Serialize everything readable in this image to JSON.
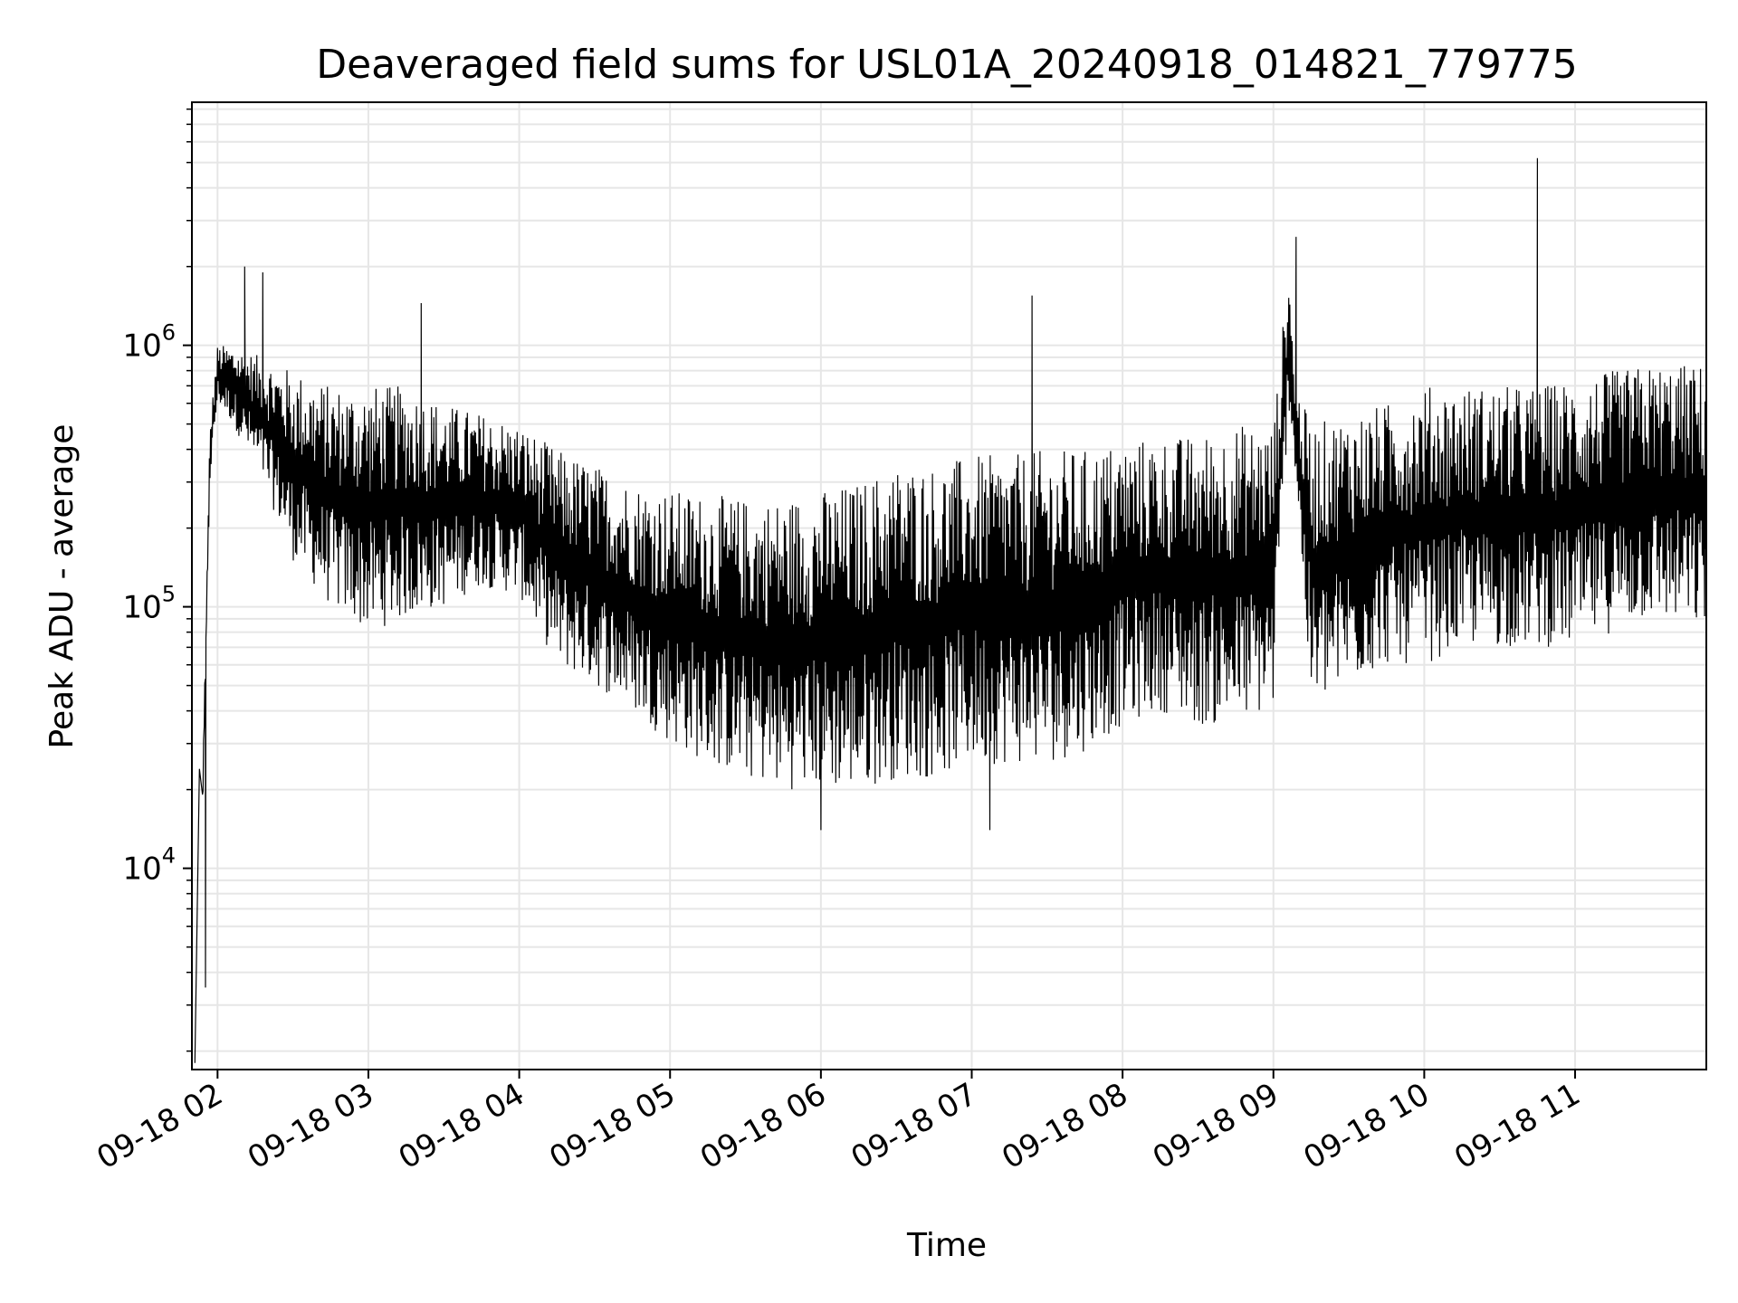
{
  "chart_data": {
    "type": "line",
    "title": "Deaveraged field sums for USL01A_20240918_014821_779775",
    "xlabel": "Time",
    "ylabel": "Peak ADU - average",
    "y_scale": "log",
    "ylim": [
      1700,
      8500000
    ],
    "xlim_hours": [
      1.83,
      11.87
    ],
    "grid": "on",
    "line_color": "#000000",
    "grid_color": "#e6e6e6",
    "x_ticks": [
      {
        "label": "09-18 02",
        "hour": 2
      },
      {
        "label": "09-18 03",
        "hour": 3
      },
      {
        "label": "09-18 04",
        "hour": 4
      },
      {
        "label": "09-18 05",
        "hour": 5
      },
      {
        "label": "09-18 06",
        "hour": 6
      },
      {
        "label": "09-18 07",
        "hour": 7
      },
      {
        "label": "09-18 08",
        "hour": 8
      },
      {
        "label": "09-18 09",
        "hour": 9
      },
      {
        "label": "09-18 10",
        "hour": 10
      },
      {
        "label": "09-18 11",
        "hour": 11
      }
    ],
    "y_ticks": [
      {
        "base": "10",
        "exp": "4",
        "value": 10000
      },
      {
        "base": "10",
        "exp": "5",
        "value": 100000
      },
      {
        "base": "10",
        "exp": "6",
        "value": 1000000
      }
    ],
    "series": [
      {
        "envelope_hours": [
          1.9,
          1.95,
          2.0,
          2.1,
          2.3,
          2.5,
          2.75,
          3.0,
          3.25,
          3.5,
          3.75,
          4.0,
          4.25,
          4.5,
          4.75,
          5.0,
          5.25,
          5.5,
          5.75,
          6.0,
          6.25,
          6.5,
          6.75,
          7.0,
          7.25,
          7.5,
          7.75,
          8.0,
          8.25,
          8.5,
          8.75,
          9.0,
          9.1,
          9.15,
          9.25,
          9.5,
          9.75,
          10.0,
          10.25,
          10.5,
          10.75,
          11.0,
          11.25,
          11.5,
          11.87
        ],
        "envelope_low": [
          15000,
          300000,
          600000,
          500000,
          300000,
          150000,
          100000,
          80000,
          90000,
          100000,
          120000,
          110000,
          60000,
          50000,
          40000,
          30000,
          25000,
          22000,
          20000,
          20000,
          20000,
          22000,
          22000,
          25000,
          25000,
          25000,
          28000,
          35000,
          40000,
          35000,
          35000,
          40000,
          600000,
          300000,
          40000,
          50000,
          60000,
          60000,
          70000,
          70000,
          70000,
          70000,
          80000,
          90000,
          80000
        ],
        "envelope_high": [
          20000,
          500000,
          1000000,
          1000000,
          900000,
          800000,
          700000,
          700000,
          700000,
          600000,
          550000,
          500000,
          400000,
          350000,
          300000,
          280000,
          270000,
          260000,
          260000,
          280000,
          300000,
          350000,
          350000,
          380000,
          380000,
          400000,
          400000,
          430000,
          450000,
          450000,
          500000,
          500000,
          2000000,
          700000,
          500000,
          550000,
          600000,
          700000,
          700000,
          700000,
          700000,
          750000,
          800000,
          850000,
          850000
        ],
        "notable_points": [
          {
            "hour": 1.85,
            "value": 1800
          },
          {
            "hour": 1.88,
            "value": 24000
          },
          {
            "hour": 1.92,
            "value": 3500
          },
          {
            "hour": 2.18,
            "value": 2000000
          },
          {
            "hour": 2.3,
            "value": 1900000
          },
          {
            "hour": 3.35,
            "value": 1450000
          },
          {
            "hour": 7.4,
            "value": 1550000
          },
          {
            "hour": 9.15,
            "value": 2600000
          },
          {
            "hour": 10.75,
            "value": 5200000
          },
          {
            "hour": 6.0,
            "value": 14000
          },
          {
            "hour": 7.12,
            "value": 14000
          }
        ]
      }
    ]
  }
}
